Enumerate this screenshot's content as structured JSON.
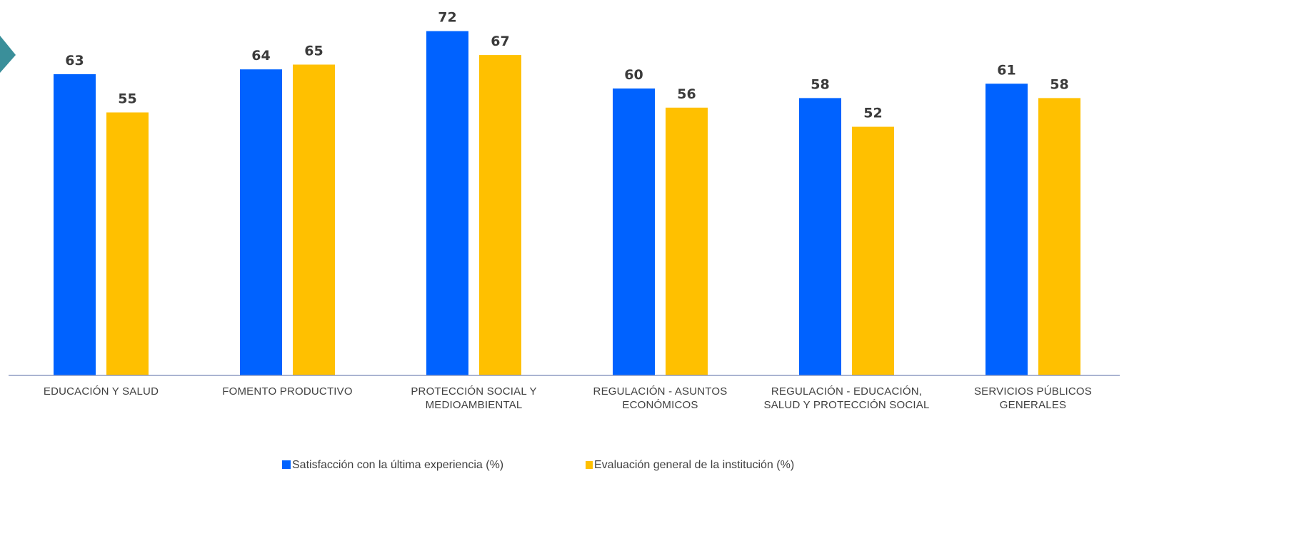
{
  "colors": {
    "series_1": "#0062ff",
    "series_2": "#ffc000",
    "axis": "#8e9bc2",
    "marker": "#3a8f9a"
  },
  "decorations": {
    "marker_icon": "teal-chevron-marker"
  },
  "chart_data": {
    "type": "bar",
    "title": "",
    "xlabel": "",
    "ylabel": "",
    "ylim": [
      0,
      72
    ],
    "grid": false,
    "legend_position": "bottom",
    "categories": [
      [
        "EDUCACIÓN Y SALUD"
      ],
      [
        "FOMENTO PRODUCTIVO"
      ],
      [
        "PROTECCIÓN SOCIAL Y",
        "MEDIOAMBIENTAL"
      ],
      [
        "REGULACIÓN - ASUNTOS",
        "ECONÓMICOS"
      ],
      [
        "REGULACIÓN - EDUCACIÓN,",
        "SALUD Y PROTECCIÓN SOCIAL"
      ],
      [
        "SERVICIOS PÚBLICOS",
        "GENERALES"
      ]
    ],
    "series": [
      {
        "name": "Satisfacción con la última experiencia (%)",
        "values": [
          63,
          64,
          72,
          60,
          58,
          61
        ]
      },
      {
        "name": "Evaluación general de la institución (%)",
        "values": [
          55,
          65,
          67,
          56,
          52,
          58
        ]
      }
    ]
  }
}
